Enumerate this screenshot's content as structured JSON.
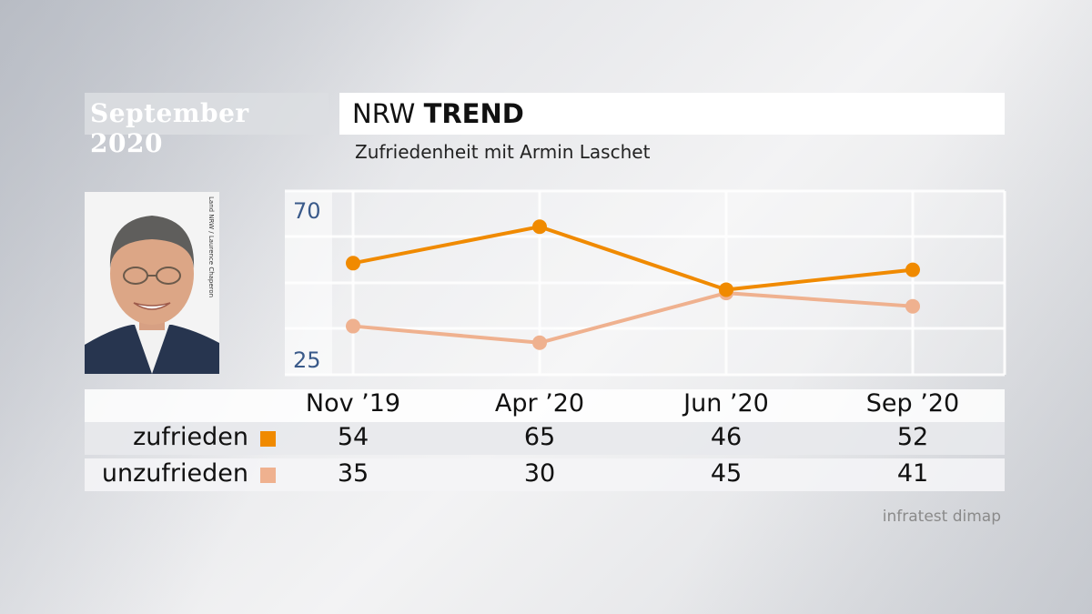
{
  "header": {
    "date": "September 2020",
    "title_light": "NRW ",
    "title_bold": "TREND",
    "subtitle": "Zufriedenheit mit Armin Laschet"
  },
  "photo": {
    "credit": "Land NRW / Laurence Chaperon"
  },
  "source": "infratest dimap",
  "colors": {
    "zufrieden": "#f08a00",
    "unzufrieden": "#efb18f"
  },
  "chart_data": {
    "type": "line",
    "categories": [
      "Nov ’19",
      "Apr ’20",
      "Jun ’20",
      "Sep ’20"
    ],
    "y_tick_labels": [
      "70",
      "25"
    ],
    "ylim": [
      25,
      70
    ],
    "grid": true,
    "series": [
      {
        "name": "zufrieden",
        "values": [
          54,
          65,
          46,
          52
        ]
      },
      {
        "name": "unzufrieden",
        "values": [
          35,
          30,
          45,
          41
        ]
      }
    ]
  }
}
